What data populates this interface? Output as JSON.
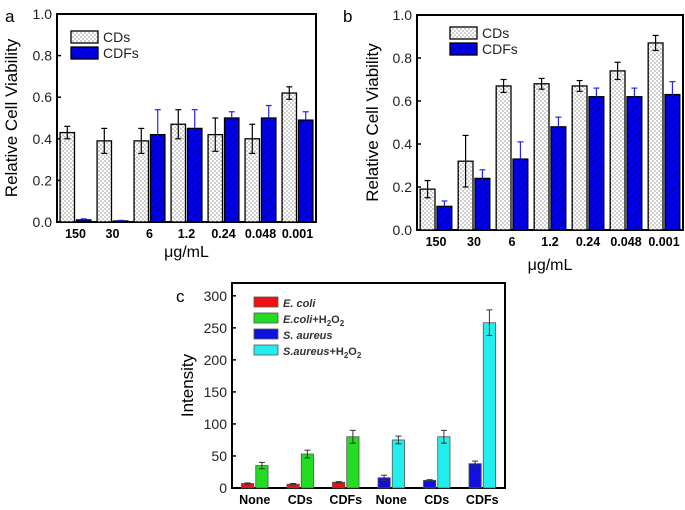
{
  "chart_data": [
    {
      "panel": "a",
      "type": "bar",
      "xlabel": "μg/mL",
      "ylabel": "Relative Cell Viability",
      "categories": [
        "150",
        "30",
        "6",
        "1.2",
        "0.24",
        "0.048",
        "0.001"
      ],
      "ylim": [
        0,
        1.0
      ],
      "yticks": [
        "0.0",
        "0.2",
        "0.4",
        "0.6",
        "0.8",
        "1.0"
      ],
      "legend": "top-left",
      "series": [
        {
          "name": "CDs",
          "values": [
            0.43,
            0.39,
            0.39,
            0.47,
            0.42,
            0.4,
            0.62
          ],
          "errors": [
            0.03,
            0.06,
            0.06,
            0.07,
            0.08,
            0.07,
            0.03
          ],
          "color": "#ffffff",
          "error_color": "#000000"
        },
        {
          "name": "CDFs",
          "values": [
            0.01,
            0.005,
            0.42,
            0.45,
            0.5,
            0.5,
            0.49
          ],
          "errors": [
            0.005,
            0.003,
            0.12,
            0.09,
            0.03,
            0.06,
            0.04
          ],
          "color": "#0000ee",
          "error_color": "#2222ff"
        }
      ]
    },
    {
      "panel": "b",
      "type": "bar",
      "xlabel": "μg/mL",
      "ylabel": "Relative Cell Viability",
      "categories": [
        "150",
        "30",
        "6",
        "1.2",
        "0.24",
        "0.048",
        "0.001"
      ],
      "ylim": [
        0,
        1.0
      ],
      "yticks": [
        "0.0",
        "0.2",
        "0.4",
        "0.6",
        "0.8",
        "1.0"
      ],
      "legend": "top-left",
      "series": [
        {
          "name": "CDs",
          "values": [
            0.19,
            0.32,
            0.67,
            0.68,
            0.67,
            0.74,
            0.87
          ],
          "errors": [
            0.04,
            0.12,
            0.03,
            0.025,
            0.025,
            0.04,
            0.035
          ],
          "color": "#ffffff",
          "error_color": "#000000"
        },
        {
          "name": "CDFs",
          "values": [
            0.11,
            0.24,
            0.33,
            0.48,
            0.62,
            0.62,
            0.63
          ],
          "errors": [
            0.025,
            0.04,
            0.08,
            0.045,
            0.04,
            0.04,
            0.06
          ],
          "color": "#0000ee",
          "error_color": "#2222ff"
        }
      ]
    },
    {
      "panel": "c",
      "type": "bar",
      "xlabel": "",
      "ylabel": "Intensity",
      "categories": [
        "None",
        "CDs",
        "CDFs",
        "None",
        "CDs",
        "CDFs"
      ],
      "ylim": [
        0,
        320
      ],
      "yticks": [
        "0",
        "50",
        "100",
        "150",
        "200",
        "250",
        "300"
      ],
      "legend": "top-left",
      "series": [
        {
          "name": "E. coli",
          "values": [
            7,
            6,
            9,
            null,
            null,
            null
          ],
          "errors": [
            1,
            1,
            1,
            null,
            null,
            null
          ],
          "color": "#ee1111"
        },
        {
          "name": "E.coli+H2O2",
          "values": [
            35,
            53,
            80,
            null,
            null,
            null
          ],
          "errors": [
            5,
            6,
            10,
            null,
            null,
            null
          ],
          "color": "#22dd22"
        },
        {
          "name": "S. aureus",
          "values": [
            null,
            null,
            null,
            16,
            12,
            38
          ],
          "errors": [
            null,
            null,
            null,
            4,
            1,
            4
          ],
          "color": "#1111dd"
        },
        {
          "name": "S.aureus+H2O2",
          "values": [
            null,
            null,
            null,
            75,
            80,
            258
          ],
          "errors": [
            null,
            null,
            null,
            6,
            10,
            20
          ],
          "color": "#22eeee"
        }
      ]
    }
  ]
}
